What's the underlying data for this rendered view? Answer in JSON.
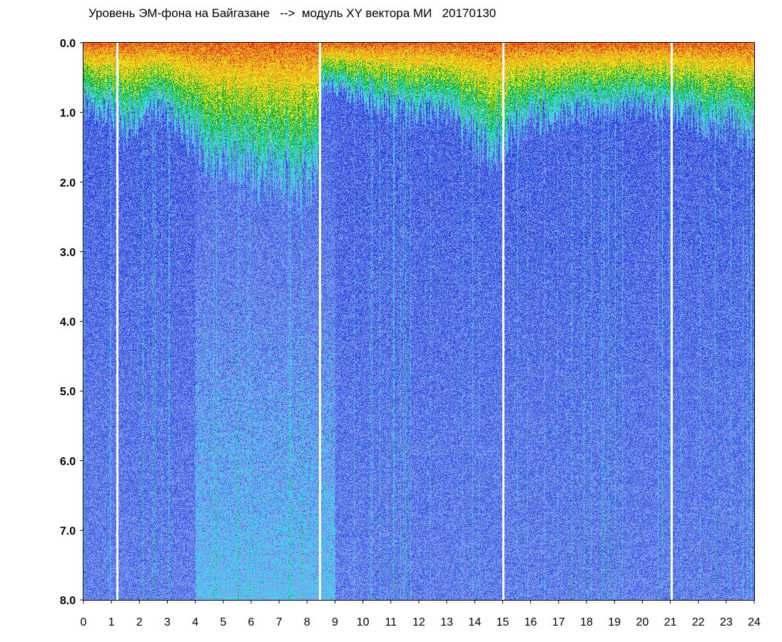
{
  "chart_data": {
    "type": "heatmap",
    "title": "Уровень ЭМ-фона на Байгазане   -->  модуль XY вектора МИ   20170130",
    "xlabel": "",
    "ylabel": "",
    "x_range": [
      0,
      24
    ],
    "y_range": [
      0.0,
      8.0
    ],
    "y_inverted": true,
    "x_ticks": [
      "0",
      "1",
      "2",
      "3",
      "4",
      "5",
      "6",
      "7",
      "8",
      "9",
      "10",
      "11",
      "12",
      "13",
      "14",
      "15",
      "16",
      "17",
      "18",
      "19",
      "20",
      "21",
      "22",
      "23",
      "24"
    ],
    "y_ticks": [
      "0.0",
      "1.0",
      "2.0",
      "3.0",
      "4.0",
      "5.0",
      "6.0",
      "7.0",
      "8.0"
    ],
    "grid": false,
    "legend": "none",
    "colormap": [
      "#1a2fd6",
      "#3f5ee8",
      "#7f9cf0",
      "#33e0e8",
      "#18b030",
      "#e8e81a",
      "#f2a018",
      "#e82a18"
    ],
    "activity_profile": [
      {
        "hour": 0.0,
        "depth": 0.9
      },
      {
        "hour": 1.0,
        "depth": 1.0
      },
      {
        "hour": 1.5,
        "depth": 1.3
      },
      {
        "hour": 2.5,
        "depth": 0.9
      },
      {
        "hour": 3.5,
        "depth": 1.2
      },
      {
        "hour": 4.5,
        "depth": 1.7
      },
      {
        "hour": 6.0,
        "depth": 1.9
      },
      {
        "hour": 7.5,
        "depth": 2.0
      },
      {
        "hour": 8.3,
        "depth": 1.9
      },
      {
        "hour": 8.6,
        "depth": 0.6
      },
      {
        "hour": 10.0,
        "depth": 0.8
      },
      {
        "hour": 11.5,
        "depth": 1.0
      },
      {
        "hour": 13.0,
        "depth": 1.0
      },
      {
        "hour": 14.5,
        "depth": 1.6
      },
      {
        "hour": 16.0,
        "depth": 1.1
      },
      {
        "hour": 18.0,
        "depth": 1.0
      },
      {
        "hour": 20.0,
        "depth": 0.9
      },
      {
        "hour": 22.0,
        "depth": 1.1
      },
      {
        "hour": 24.0,
        "depth": 1.3
      }
    ],
    "gaps_hours": [
      1.2,
      8.45,
      15.0,
      21.05
    ]
  }
}
